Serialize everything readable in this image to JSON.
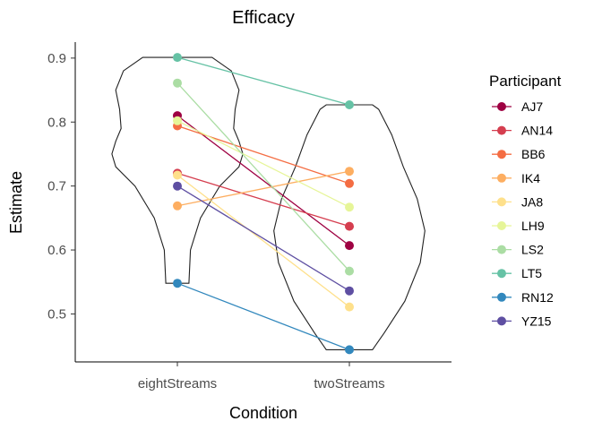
{
  "chart_data": {
    "type": "scatter",
    "title": "Efficacy",
    "xlabel": "Condition",
    "ylabel": "Estimate",
    "categories": [
      "eightStreams",
      "twoStreams"
    ],
    "ylim": [
      0.425,
      0.925
    ],
    "yticks": [
      "0.5",
      "0.6",
      "0.7",
      "0.8",
      "0.9"
    ],
    "grid": false,
    "legend_title": "Participant",
    "legend_position": "right",
    "series": [
      {
        "name": "AJ7",
        "color": "#9E0142",
        "values": [
          0.81,
          0.607
        ]
      },
      {
        "name": "AN14",
        "color": "#D53E4F",
        "values": [
          0.72,
          0.637
        ]
      },
      {
        "name": "BB6",
        "color": "#F46D43",
        "values": [
          0.794,
          0.704
        ]
      },
      {
        "name": "IK4",
        "color": "#FDAE61",
        "values": [
          0.669,
          0.723
        ]
      },
      {
        "name": "JA8",
        "color": "#FEE08B",
        "values": [
          0.717,
          0.511
        ]
      },
      {
        "name": "LH9",
        "color": "#E6F598",
        "values": [
          0.802,
          0.667
        ]
      },
      {
        "name": "LS2",
        "color": "#ABDDA4",
        "values": [
          0.861,
          0.567
        ]
      },
      {
        "name": "LT5",
        "color": "#66C2A5",
        "values": [
          0.901,
          0.827
        ]
      },
      {
        "name": "RN12",
        "color": "#3288BD",
        "values": [
          0.548,
          0.444
        ]
      },
      {
        "name": "YZ15",
        "color": "#5E4FA2",
        "values": [
          0.7,
          0.536
        ]
      }
    ],
    "violins": [
      {
        "category": "eightStreams",
        "shape": [
          [
            0.548,
            0.15
          ],
          [
            0.6,
            0.17
          ],
          [
            0.65,
            0.3
          ],
          [
            0.7,
            0.55
          ],
          [
            0.73,
            0.8
          ],
          [
            0.75,
            0.85
          ],
          [
            0.77,
            0.8
          ],
          [
            0.79,
            0.73
          ],
          [
            0.82,
            0.75
          ],
          [
            0.85,
            0.8
          ],
          [
            0.88,
            0.7
          ],
          [
            0.901,
            0.45
          ]
        ]
      },
      {
        "category": "twoStreams",
        "shape": [
          [
            0.444,
            0.3
          ],
          [
            0.47,
            0.45
          ],
          [
            0.52,
            0.72
          ],
          [
            0.58,
            0.92
          ],
          [
            0.63,
            0.98
          ],
          [
            0.68,
            0.88
          ],
          [
            0.73,
            0.7
          ],
          [
            0.78,
            0.55
          ],
          [
            0.82,
            0.38
          ],
          [
            0.827,
            0.3
          ]
        ]
      }
    ]
  }
}
